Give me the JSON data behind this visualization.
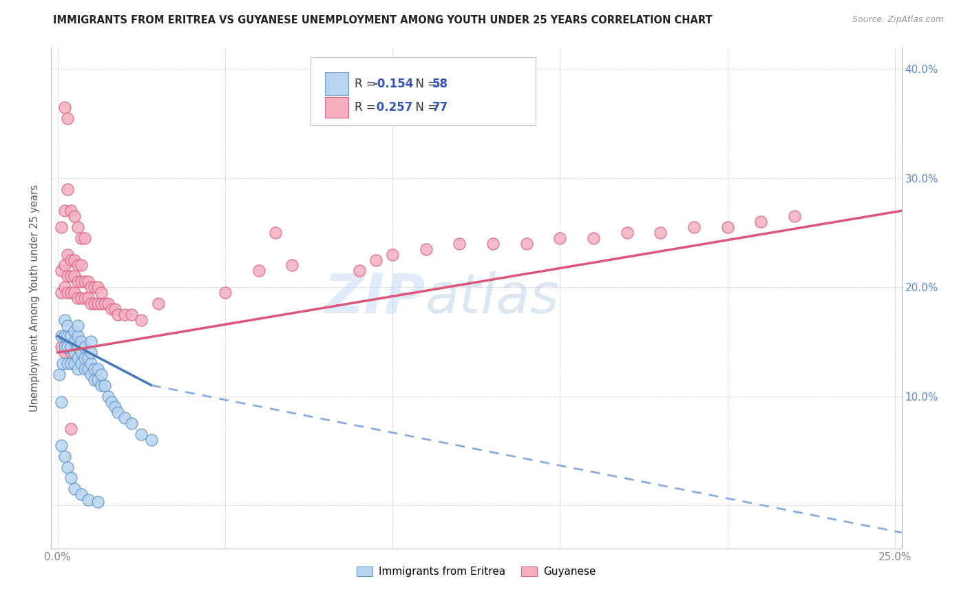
{
  "title": "IMMIGRANTS FROM ERITREA VS GUYANESE UNEMPLOYMENT AMONG YOUTH UNDER 25 YEARS CORRELATION CHART",
  "source": "Source: ZipAtlas.com",
  "ylabel": "Unemployment Among Youth under 25 years",
  "xlim": [
    -0.002,
    0.252
  ],
  "ylim": [
    -0.04,
    0.42
  ],
  "color_eritrea_fill": "#b8d4f0",
  "color_eritrea_edge": "#6699cc",
  "color_guyanese_fill": "#f5b0c0",
  "color_guyanese_edge": "#dd6688",
  "color_line_eritrea_solid": "#4477bb",
  "color_line_eritrea_dash": "#88aadd",
  "color_line_guyanese": "#dd5577",
  "watermark_zip": "ZIP",
  "watermark_atlas": "atlas",
  "eritrea_x": [
    0.0005,
    0.001,
    0.001,
    0.0015,
    0.002,
    0.002,
    0.002,
    0.003,
    0.003,
    0.003,
    0.003,
    0.004,
    0.004,
    0.004,
    0.005,
    0.005,
    0.005,
    0.005,
    0.006,
    0.006,
    0.006,
    0.006,
    0.006,
    0.007,
    0.007,
    0.007,
    0.008,
    0.008,
    0.008,
    0.009,
    0.009,
    0.01,
    0.01,
    0.01,
    0.01,
    0.011,
    0.011,
    0.012,
    0.012,
    0.013,
    0.013,
    0.014,
    0.015,
    0.016,
    0.017,
    0.018,
    0.02,
    0.022,
    0.025,
    0.028,
    0.001,
    0.002,
    0.003,
    0.004,
    0.005,
    0.007,
    0.009,
    0.012
  ],
  "eritrea_y": [
    0.12,
    0.095,
    0.155,
    0.13,
    0.155,
    0.145,
    0.17,
    0.13,
    0.145,
    0.155,
    0.165,
    0.13,
    0.145,
    0.155,
    0.13,
    0.14,
    0.15,
    0.16,
    0.125,
    0.135,
    0.145,
    0.155,
    0.165,
    0.13,
    0.14,
    0.15,
    0.125,
    0.135,
    0.145,
    0.125,
    0.135,
    0.12,
    0.13,
    0.14,
    0.15,
    0.115,
    0.125,
    0.115,
    0.125,
    0.11,
    0.12,
    0.11,
    0.1,
    0.095,
    0.09,
    0.085,
    0.08,
    0.075,
    0.065,
    0.06,
    0.055,
    0.045,
    0.035,
    0.025,
    0.015,
    0.01,
    0.005,
    0.003
  ],
  "guyanese_x": [
    0.001,
    0.001,
    0.002,
    0.002,
    0.003,
    0.003,
    0.003,
    0.004,
    0.004,
    0.004,
    0.005,
    0.005,
    0.005,
    0.006,
    0.006,
    0.006,
    0.007,
    0.007,
    0.007,
    0.008,
    0.008,
    0.009,
    0.009,
    0.01,
    0.01,
    0.011,
    0.011,
    0.012,
    0.012,
    0.013,
    0.013,
    0.014,
    0.015,
    0.016,
    0.017,
    0.018,
    0.02,
    0.022,
    0.025,
    0.03,
    0.001,
    0.002,
    0.003,
    0.004,
    0.005,
    0.006,
    0.007,
    0.008,
    0.001,
    0.002,
    0.003,
    0.004,
    0.005,
    0.006,
    0.05,
    0.06,
    0.065,
    0.07,
    0.09,
    0.095,
    0.1,
    0.11,
    0.12,
    0.13,
    0.14,
    0.15,
    0.16,
    0.17,
    0.18,
    0.19,
    0.2,
    0.21,
    0.22,
    0.002,
    0.003,
    0.004
  ],
  "guyanese_y": [
    0.195,
    0.215,
    0.2,
    0.22,
    0.195,
    0.21,
    0.23,
    0.195,
    0.21,
    0.225,
    0.195,
    0.21,
    0.225,
    0.19,
    0.205,
    0.22,
    0.19,
    0.205,
    0.22,
    0.19,
    0.205,
    0.19,
    0.205,
    0.185,
    0.2,
    0.185,
    0.2,
    0.185,
    0.2,
    0.185,
    0.195,
    0.185,
    0.185,
    0.18,
    0.18,
    0.175,
    0.175,
    0.175,
    0.17,
    0.185,
    0.255,
    0.27,
    0.29,
    0.27,
    0.265,
    0.255,
    0.245,
    0.245,
    0.145,
    0.14,
    0.145,
    0.14,
    0.15,
    0.15,
    0.195,
    0.215,
    0.25,
    0.22,
    0.215,
    0.225,
    0.23,
    0.235,
    0.24,
    0.24,
    0.24,
    0.245,
    0.245,
    0.25,
    0.25,
    0.255,
    0.255,
    0.26,
    0.265,
    0.365,
    0.355,
    0.07
  ],
  "trend_eritrea_x0": 0.0,
  "trend_eritrea_y0": 0.155,
  "trend_eritrea_x1": 0.028,
  "trend_eritrea_y1": 0.11,
  "trend_eritrea_dash_x0": 0.028,
  "trend_eritrea_dash_y0": 0.11,
  "trend_eritrea_dash_x1": 0.252,
  "trend_eritrea_dash_y1": -0.025,
  "trend_guyanese_x0": 0.0,
  "trend_guyanese_y0": 0.14,
  "trend_guyanese_x1": 0.252,
  "trend_guyanese_y1": 0.27
}
